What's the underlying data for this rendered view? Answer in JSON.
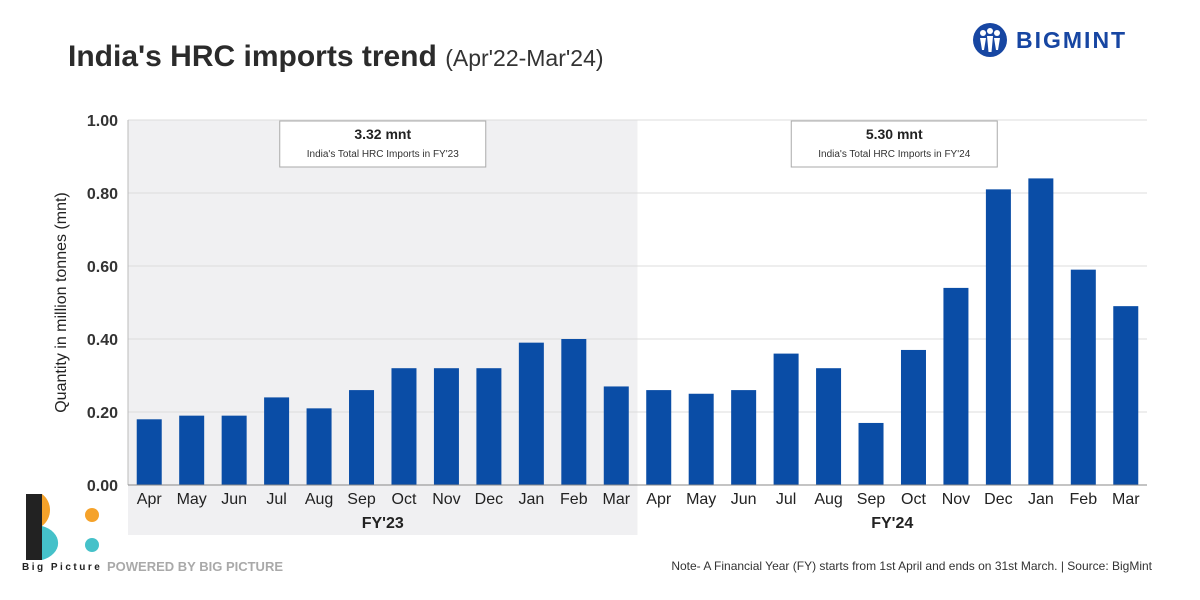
{
  "title": {
    "main": "India's HRC imports trend",
    "period": "(Apr'22-Mar'24)"
  },
  "brand": {
    "name": "BIGMINT",
    "icon": "bigmint-people-icon",
    "color": "#1746a2"
  },
  "footer": {
    "big_picture_label": "Big Picture",
    "powered_by": "POWERED BY BIG PICTURE",
    "note": "Note- A Financial Year (FY) starts from 1st April and ends on 31st March. | Source: BigMint"
  },
  "colors": {
    "bar": "#0a4da6",
    "fy23_band": "#f0f0f2",
    "logo_orange": "#f5a22a",
    "logo_teal": "#45c1c9",
    "logo_dark": "#222222"
  },
  "chart_data": {
    "type": "bar",
    "ylabel": "Quantity in million tonnes (mnt)",
    "ylim": [
      0,
      1.0
    ],
    "yticks": [
      "0.00",
      "0.20",
      "0.40",
      "0.60",
      "0.80",
      "1.00"
    ],
    "grid": true,
    "categories": [
      "Apr",
      "May",
      "Jun",
      "Jul",
      "Aug",
      "Sep",
      "Oct",
      "Nov",
      "Dec",
      "Jan",
      "Feb",
      "Mar",
      "Apr",
      "May",
      "Jun",
      "Jul",
      "Aug",
      "Sep",
      "Oct",
      "Nov",
      "Dec",
      "Jan",
      "Feb",
      "Mar"
    ],
    "values": [
      0.18,
      0.19,
      0.19,
      0.24,
      0.21,
      0.26,
      0.32,
      0.32,
      0.32,
      0.39,
      0.4,
      0.27,
      0.26,
      0.25,
      0.26,
      0.36,
      0.32,
      0.17,
      0.37,
      0.54,
      0.81,
      0.84,
      0.59,
      0.49
    ],
    "groups": [
      {
        "label": "FY'23",
        "start": 0,
        "end": 11,
        "total": "3.32 mnt",
        "total_label": "India's Total HRC Imports in FY'23",
        "shaded": true
      },
      {
        "label": "FY'24",
        "start": 12,
        "end": 23,
        "total": "5.30 mnt",
        "total_label": "India's Total HRC Imports in FY'24",
        "shaded": false
      }
    ]
  }
}
